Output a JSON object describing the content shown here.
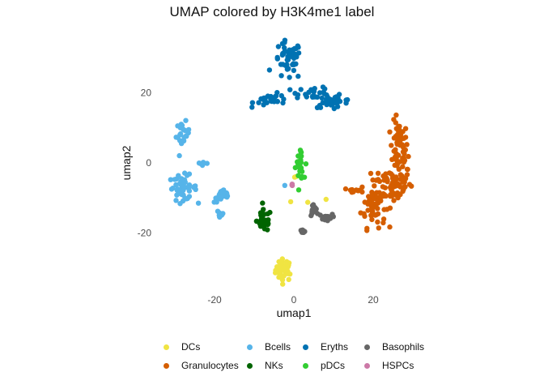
{
  "chart_data": {
    "type": "scatter",
    "title": "UMAP colored by H3K4me1 label",
    "xlabel": "umap1",
    "ylabel": "umap2",
    "xticks": [
      -20,
      0,
      20
    ],
    "yticks": [
      -20,
      0,
      20
    ],
    "xlim": [
      -34,
      34
    ],
    "ylim": [
      -38,
      38
    ],
    "grid": false,
    "legend_position": "bottom",
    "series": [
      {
        "name": "DCs",
        "color": "#F0E442",
        "clusters": [
          {
            "cx": -2.5,
            "cy": -30.5,
            "sx": 1.5,
            "sy": 2.2,
            "n": 40
          },
          {
            "cx": 4,
            "cy": -11,
            "sx": 4,
            "sy": 0.6,
            "n": 3
          },
          {
            "cx": 0.2,
            "cy": -4.5,
            "sx": 0.3,
            "sy": 0.6,
            "n": 2
          }
        ]
      },
      {
        "name": "Granulocytes",
        "color": "#D55E00",
        "clusters": [
          {
            "cx": 26.5,
            "cy": 4,
            "sx": 1.6,
            "sy": 5.5,
            "n": 60
          },
          {
            "cx": 25,
            "cy": -6,
            "sx": 3.5,
            "sy": 4,
            "n": 70
          },
          {
            "cx": 20,
            "cy": -12,
            "sx": 2.2,
            "sy": 4.5,
            "n": 60
          },
          {
            "cx": 15.5,
            "cy": -7.5,
            "sx": 1.2,
            "sy": 0.5,
            "n": 10
          }
        ]
      },
      {
        "name": "Bcells",
        "color": "#56B4E9",
        "clusters": [
          {
            "cx": -28,
            "cy": 8,
            "sx": 1.2,
            "sy": 2.5,
            "n": 22
          },
          {
            "cx": -23,
            "cy": 0,
            "sx": 1.2,
            "sy": 0.8,
            "n": 6
          },
          {
            "cx": -28,
            "cy": -7,
            "sx": 2.5,
            "sy": 2.5,
            "n": 45
          },
          {
            "cx": -18,
            "cy": -9.5,
            "sx": 1.5,
            "sy": 1.3,
            "n": 25
          },
          {
            "cx": -18.5,
            "cy": -14.5,
            "sx": 0.7,
            "sy": 1.2,
            "n": 10
          },
          {
            "cx": -2.5,
            "cy": -6.5,
            "sx": 0.4,
            "sy": 0.3,
            "n": 1
          }
        ]
      },
      {
        "name": "NKs",
        "color": "#006400",
        "clusters": [
          {
            "cx": -7.5,
            "cy": -16.5,
            "sx": 1.3,
            "sy": 2.2,
            "n": 35
          }
        ]
      },
      {
        "name": "Eryths",
        "color": "#0072B2",
        "clusters": [
          {
            "cx": -1.5,
            "cy": 29,
            "sx": 2.5,
            "sy": 4,
            "n": 45
          },
          {
            "cx": -5,
            "cy": 18,
            "sx": 3.5,
            "sy": 1.2,
            "n": 30
          },
          {
            "cx": 5,
            "cy": 20,
            "sx": 3,
            "sy": 1.2,
            "n": 25
          },
          {
            "cx": 10,
            "cy": 17.5,
            "sx": 3.5,
            "sy": 1.2,
            "n": 30
          }
        ]
      },
      {
        "name": "pDCs",
        "color": "#32CD32",
        "clusters": [
          {
            "cx": 1.5,
            "cy": -1.5,
            "sx": 0.7,
            "sy": 2.2,
            "n": 22
          },
          {
            "cx": 1.5,
            "cy": 2.5,
            "sx": 0.4,
            "sy": 1.5,
            "n": 4
          }
        ]
      },
      {
        "name": "Basophils",
        "color": "#666666",
        "clusters": [
          {
            "cx": 5,
            "cy": -13.5,
            "sx": 0.8,
            "sy": 1.3,
            "n": 12
          },
          {
            "cx": 8,
            "cy": -15.5,
            "sx": 1.2,
            "sy": 0.6,
            "n": 18
          },
          {
            "cx": 2.2,
            "cy": -19.5,
            "sx": 0.6,
            "sy": 0.4,
            "n": 6
          }
        ]
      },
      {
        "name": "HSPCs",
        "color": "#CC79A7",
        "clusters": [
          {
            "cx": -0.5,
            "cy": -6.5,
            "sx": 0.5,
            "sy": 0.4,
            "n": 3
          }
        ]
      }
    ]
  },
  "legend": {
    "items": [
      {
        "label": "DCs",
        "color": "#F0E442"
      },
      {
        "label": "Bcells",
        "color": "#56B4E9"
      },
      {
        "label": "Eryths",
        "color": "#0072B2"
      },
      {
        "label": "Basophils",
        "color": "#666666"
      },
      {
        "label": "Granulocytes",
        "color": "#D55E00"
      },
      {
        "label": "NKs",
        "color": "#006400"
      },
      {
        "label": "pDCs",
        "color": "#32CD32"
      },
      {
        "label": "HSPCs",
        "color": "#CC79A7"
      }
    ]
  }
}
